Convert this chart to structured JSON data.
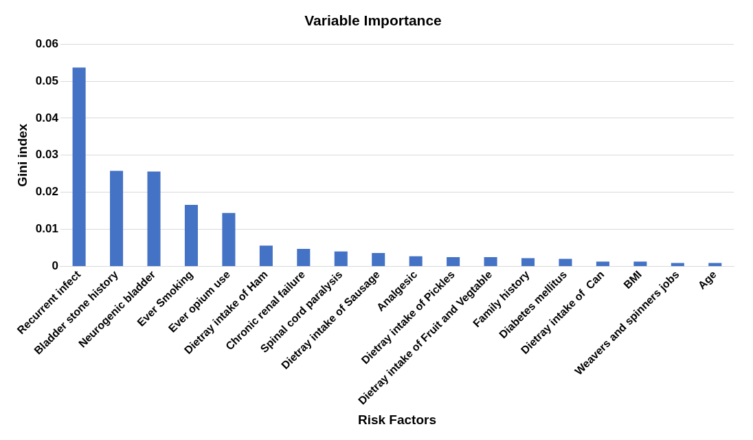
{
  "chart_data": {
    "type": "bar",
    "title": "Variable Importance",
    "xlabel": "Risk Factors",
    "ylabel": "Gini index",
    "categories": [
      "Recurrent infect",
      "Bladder stone history",
      "Neurogenic bladder",
      "Ever Smoking",
      "Ever opium use",
      "Dietray intake of Ham",
      "Chronic renal failure",
      "Spinal cord paralysis",
      "Dietray intake of Sausage",
      "Analgesic",
      "Dietray intake of Pickles",
      "Dietray intake of Fruit and Vegtable",
      "Family history",
      "Diabetes mellitus",
      "Dietray intake of  Can",
      "BMI",
      "Weavers and spinners jobs",
      "Age"
    ],
    "values": [
      0.0537,
      0.0258,
      0.0256,
      0.0166,
      0.0144,
      0.0056,
      0.0047,
      0.004,
      0.0036,
      0.0027,
      0.0025,
      0.0025,
      0.0022,
      0.002,
      0.0013,
      0.0013,
      0.0009,
      0.0009
    ],
    "color": "#4472c4",
    "ylim": [
      0,
      0.06
    ],
    "yticks": [
      0,
      0.01,
      0.02,
      0.03,
      0.04,
      0.05,
      0.06
    ],
    "grid": "y",
    "legend": false
  }
}
